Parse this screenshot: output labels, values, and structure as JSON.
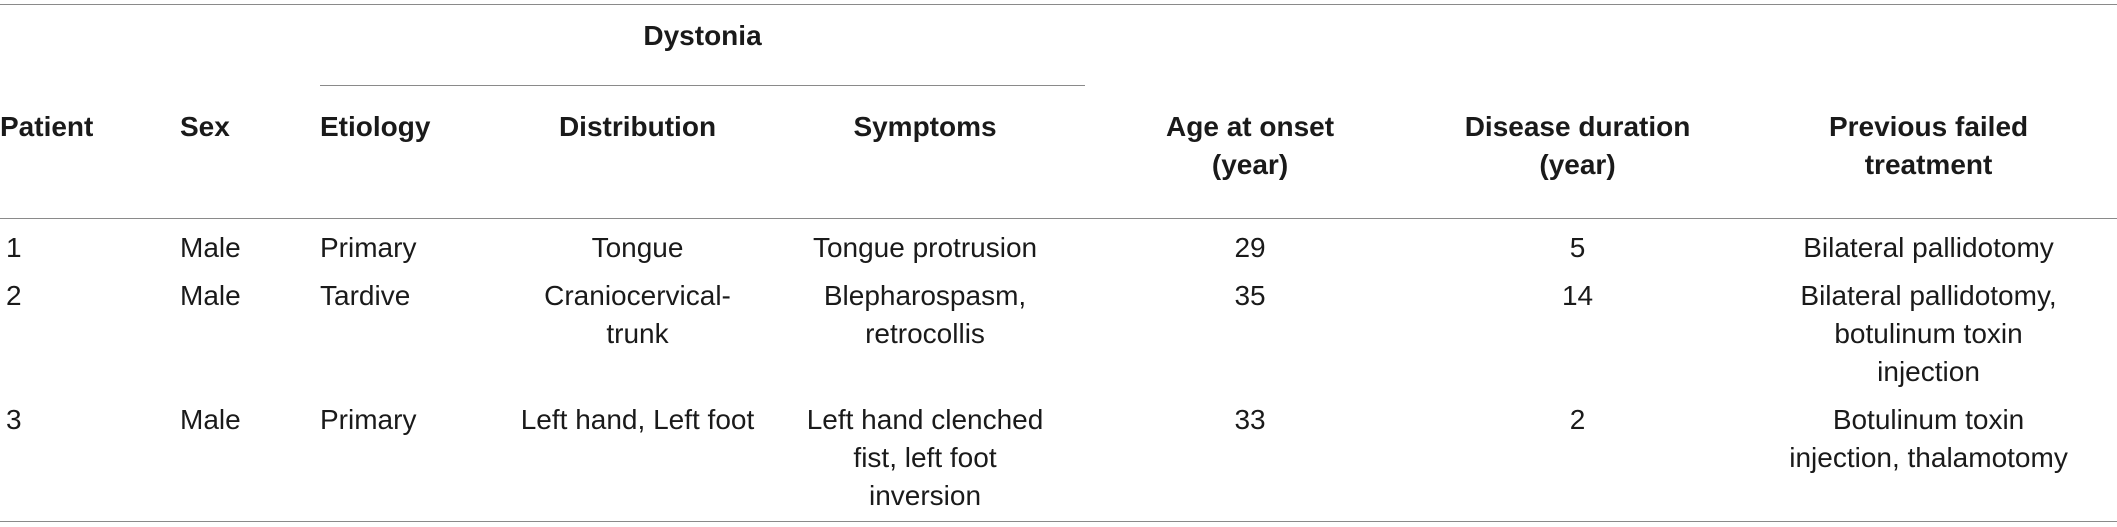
{
  "table": {
    "group_header": "Dystonia",
    "headers": {
      "patient": "Patient",
      "sex": "Sex",
      "etiology": "Etiology",
      "distribution": "Distribution",
      "symptoms": "Symptoms",
      "age_at_onset_line1": "Age at onset",
      "age_at_onset_line2": "(year)",
      "disease_duration_line1": "Disease duration",
      "disease_duration_line2": "(year)",
      "previous_line1": "Previous failed",
      "previous_line2": "treatment"
    },
    "rows": [
      {
        "patient": "1",
        "sex": "Male",
        "etiology": "Primary",
        "distribution": [
          "Tongue"
        ],
        "symptoms": [
          "Tongue protrusion"
        ],
        "age_at_onset": "29",
        "disease_duration": "5",
        "previous_failed_treatment": [
          "Bilateral pallidotomy"
        ]
      },
      {
        "patient": "2",
        "sex": "Male",
        "etiology": "Tardive",
        "distribution": [
          "Craniocervical-",
          "trunk"
        ],
        "symptoms": [
          "Blepharospasm,",
          "retrocollis"
        ],
        "age_at_onset": "35",
        "disease_duration": "14",
        "previous_failed_treatment": [
          "Bilateral pallidotomy,",
          "botulinum toxin",
          "injection"
        ]
      },
      {
        "patient": "3",
        "sex": "Male",
        "etiology": "Primary",
        "distribution": [
          "Left hand, Left foot"
        ],
        "symptoms": [
          "Left hand clenched",
          "fist, left foot",
          "inversion"
        ],
        "age_at_onset": "33",
        "disease_duration": "2",
        "previous_failed_treatment": [
          "Botulinum toxin",
          "injection, thalamotomy"
        ]
      }
    ]
  }
}
